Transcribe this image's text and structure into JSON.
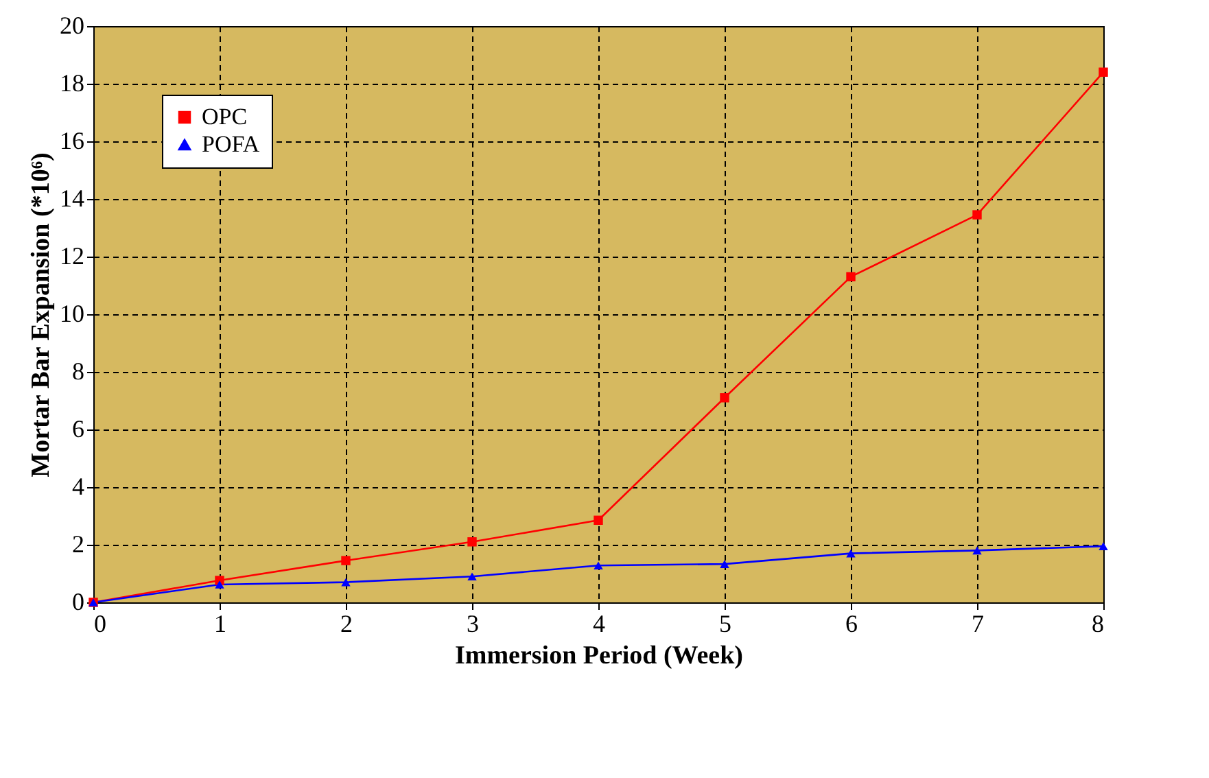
{
  "chart_data": {
    "type": "line",
    "xlabel": "Immersion Period (Week)",
    "ylabel": "Mortar Bar Expansion (*10⁶)",
    "x": [
      0,
      1,
      2,
      3,
      4,
      5,
      6,
      7,
      8
    ],
    "series": [
      {
        "name": "OPC",
        "color": "#ff0000",
        "marker": "square",
        "values": [
          0,
          0.76,
          1.45,
          2.1,
          2.85,
          7.1,
          11.3,
          13.45,
          18.4
        ]
      },
      {
        "name": "POFA",
        "color": "#0000ff",
        "marker": "triangle",
        "values": [
          0,
          0.62,
          0.7,
          0.9,
          1.28,
          1.33,
          1.7,
          1.8,
          1.95
        ]
      }
    ],
    "xlim": [
      0,
      8
    ],
    "xticks": [
      0,
      1,
      2,
      3,
      4,
      5,
      6,
      7,
      8
    ],
    "ylim": [
      0,
      20
    ],
    "yticks": [
      0,
      2,
      4,
      6,
      8,
      10,
      12,
      14,
      16,
      18,
      20
    ],
    "grid": true,
    "line_style": "solid",
    "legend": "top left"
  }
}
